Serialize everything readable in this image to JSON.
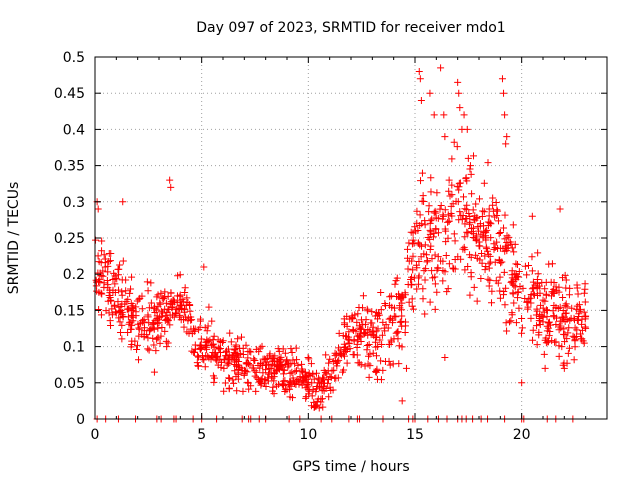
{
  "chart_data": {
    "type": "scatter",
    "title": "Day 097 of 2023, SRMTID for receiver mdo1",
    "xlabel": "GPS time / hours",
    "ylabel": "SRMTID / TECUs",
    "xlim": [
      0,
      24
    ],
    "ylim": [
      0,
      0.5
    ],
    "x_ticks": [
      0,
      5,
      10,
      15,
      20
    ],
    "y_ticks": [
      0,
      0.05,
      0.1,
      0.15,
      0.2,
      0.25,
      0.3,
      0.35,
      0.4,
      0.45,
      0.5
    ],
    "x_tick_labels": [
      "0",
      "5",
      "10",
      "15",
      "20"
    ],
    "y_tick_labels": [
      "0",
      "0.05",
      "0.1",
      "0.15",
      "0.2",
      "0.25",
      "0.3",
      "0.35",
      "0.4",
      "0.45",
      "0.5"
    ],
    "grid": true,
    "marker": "+",
    "color": "#ff0000",
    "trend_mean": {
      "x": [
        0,
        1,
        2,
        3,
        4,
        5,
        6,
        7,
        8,
        9,
        10,
        10.5,
        11,
        12,
        13,
        14,
        15,
        16,
        17,
        18,
        19,
        20,
        21,
        22,
        23
      ],
      "y": [
        0.2,
        0.17,
        0.13,
        0.14,
        0.16,
        0.1,
        0.09,
        0.075,
        0.065,
        0.065,
        0.05,
        0.035,
        0.06,
        0.12,
        0.11,
        0.12,
        0.22,
        0.25,
        0.27,
        0.25,
        0.23,
        0.18,
        0.15,
        0.14,
        0.14
      ]
    },
    "trend_spread": {
      "x": [
        0,
        5,
        11,
        15,
        17,
        20,
        23
      ],
      "y": [
        0.05,
        0.035,
        0.025,
        0.07,
        0.09,
        0.06,
        0.05
      ]
    },
    "zero_markers_x": [
      0.1,
      0.5,
      1.1,
      1.9,
      2.9,
      3.1,
      3.7,
      3.8,
      4.6,
      5.0,
      5.7,
      6.9,
      7.2,
      7.3,
      7.7,
      8.0,
      9.1,
      9.6,
      10.6,
      11.1,
      11.9,
      12.3,
      12.4,
      13.5,
      14.7,
      14.9,
      15.0,
      15.6,
      16.1,
      16.5,
      17.0,
      17.2,
      17.4,
      17.7,
      18.1,
      18.4,
      19.2,
      20.0,
      20.1,
      21.2,
      21.6,
      22.4
    ],
    "spikes": [
      {
        "x": 0.1,
        "y": 0.3
      },
      {
        "x": 0.15,
        "y": 0.29
      },
      {
        "x": 1.3,
        "y": 0.3
      },
      {
        "x": 3.5,
        "y": 0.33
      },
      {
        "x": 3.55,
        "y": 0.32
      },
      {
        "x": 5.1,
        "y": 0.21
      },
      {
        "x": 14.6,
        "y": 0.07
      },
      {
        "x": 14.4,
        "y": 0.025
      },
      {
        "x": 15.2,
        "y": 0.48
      },
      {
        "x": 15.25,
        "y": 0.47
      },
      {
        "x": 15.3,
        "y": 0.44
      },
      {
        "x": 15.7,
        "y": 0.45
      },
      {
        "x": 15.9,
        "y": 0.42
      },
      {
        "x": 16.2,
        "y": 0.485
      },
      {
        "x": 16.35,
        "y": 0.42
      },
      {
        "x": 16.4,
        "y": 0.39
      },
      {
        "x": 16.6,
        "y": 0.33
      },
      {
        "x": 17.0,
        "y": 0.465
      },
      {
        "x": 17.05,
        "y": 0.45
      },
      {
        "x": 17.1,
        "y": 0.43
      },
      {
        "x": 17.2,
        "y": 0.4
      },
      {
        "x": 17.3,
        "y": 0.42
      },
      {
        "x": 17.45,
        "y": 0.4
      },
      {
        "x": 17.5,
        "y": 0.36
      },
      {
        "x": 17.6,
        "y": 0.35
      },
      {
        "x": 19.1,
        "y": 0.47
      },
      {
        "x": 19.15,
        "y": 0.45
      },
      {
        "x": 19.2,
        "y": 0.42
      },
      {
        "x": 19.3,
        "y": 0.39
      },
      {
        "x": 19.25,
        "y": 0.38
      },
      {
        "x": 20.5,
        "y": 0.28
      },
      {
        "x": 21.8,
        "y": 0.29
      },
      {
        "x": 20.0,
        "y": 0.05
      },
      {
        "x": 21.1,
        "y": 0.07
      },
      {
        "x": 16.4,
        "y": 0.085
      },
      {
        "x": 22.0,
        "y": 0.07
      }
    ],
    "num_generated_points": 1400,
    "random_seed": 97
  }
}
